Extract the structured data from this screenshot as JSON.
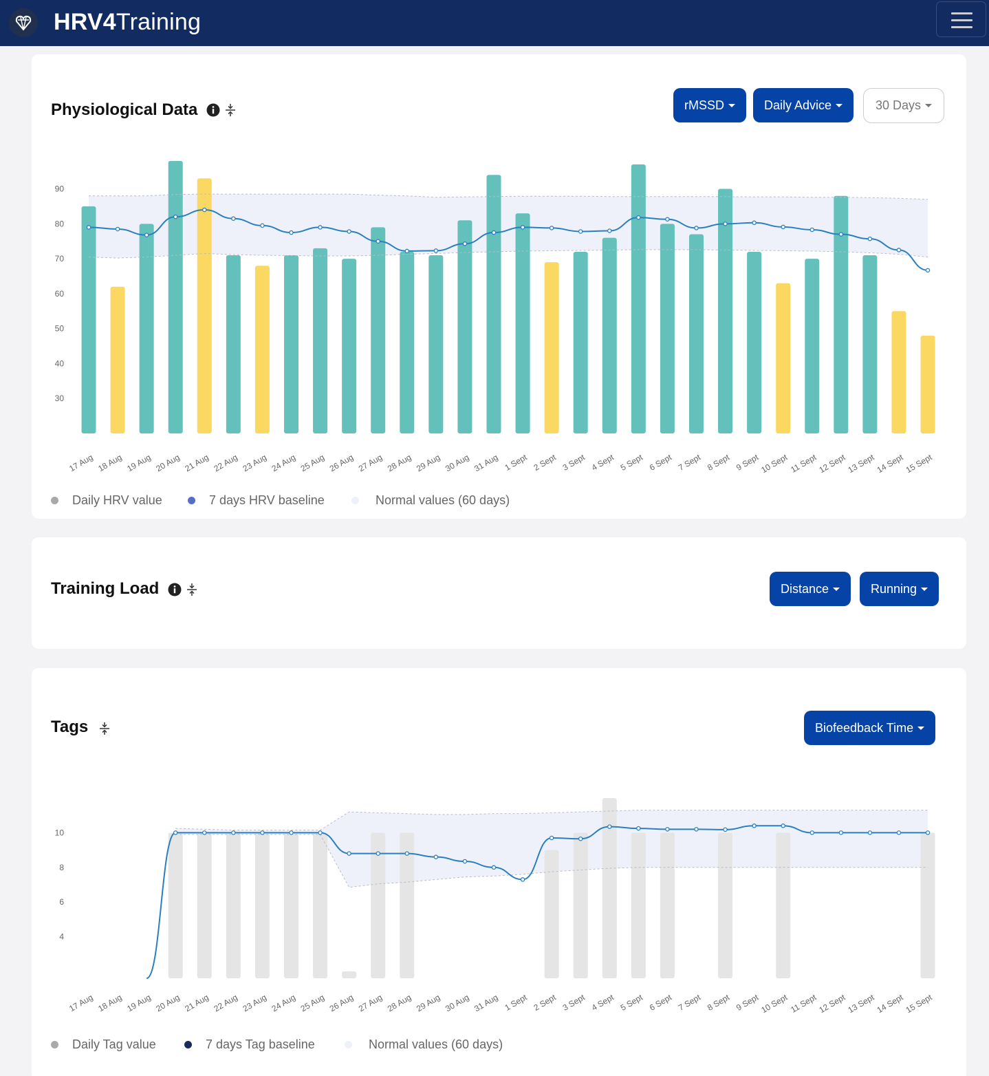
{
  "app": {
    "brand_bold": "HRV4",
    "brand_light": "Training"
  },
  "colors": {
    "navbar": "#122c62",
    "primary_button": "#0544a6",
    "hrv_bar_normal": "#63c0bb",
    "hrv_bar_low": "#fbd862",
    "baseline_line": "#2a7fbf",
    "band_fill": "#e8ecf7",
    "tag_bar": "#e5e5e5"
  },
  "physiological": {
    "title": "Physiological Data",
    "buttons": {
      "metric": "rMSSD",
      "mode": "Daily Advice",
      "range": "30 Days"
    },
    "legend": {
      "daily": "Daily HRV value",
      "baseline": "7 days HRV baseline",
      "normal": "Normal values (60 days)"
    }
  },
  "training_load": {
    "title": "Training Load",
    "buttons": {
      "metric": "Distance",
      "sport": "Running"
    }
  },
  "tags": {
    "title": "Tags",
    "buttons": {
      "tag": "Biofeedback Time"
    },
    "legend": {
      "daily": "Daily Tag value",
      "baseline": "7 days Tag baseline",
      "normal": "Normal values (60 days)"
    }
  },
  "chart_data": [
    {
      "type": "bar",
      "id": "hrv",
      "categories": [
        "17 Aug",
        "18 Aug",
        "19 Aug",
        "20 Aug",
        "21 Aug",
        "22 Aug",
        "23 Aug",
        "24 Aug",
        "25 Aug",
        "26 Aug",
        "27 Aug",
        "28 Aug",
        "29 Aug",
        "30 Aug",
        "31 Aug",
        "1 Sept",
        "2 Sept",
        "3 Sept",
        "4 Sept",
        "5 Sept",
        "6 Sept",
        "7 Sept",
        "8 Sept",
        "9 Sept",
        "10 Sept",
        "11 Sept",
        "12 Sept",
        "13 Sept",
        "14 Sept",
        "15 Sept"
      ],
      "yticks": [
        30,
        40,
        50,
        60,
        70,
        80,
        90
      ],
      "ylim": [
        20,
        97
      ],
      "series": [
        {
          "name": "Daily HRV value",
          "type": "bar",
          "values": [
            85,
            62,
            80,
            98,
            93,
            71,
            68,
            71,
            73,
            70,
            79,
            72,
            71,
            81,
            94,
            83,
            69,
            72,
            76,
            97,
            80,
            77,
            90,
            72,
            63,
            70,
            88,
            71,
            55,
            48
          ],
          "status": [
            "normal",
            "low",
            "normal",
            "normal",
            "low",
            "normal",
            "low",
            "normal",
            "normal",
            "normal",
            "normal",
            "normal",
            "normal",
            "normal",
            "normal",
            "normal",
            "low",
            "normal",
            "normal",
            "normal",
            "normal",
            "normal",
            "normal",
            "normal",
            "low",
            "normal",
            "normal",
            "normal",
            "low",
            "low"
          ]
        },
        {
          "name": "7 days HRV baseline",
          "type": "line",
          "values": [
            79,
            78.5,
            76.8,
            82,
            84,
            81.5,
            79.5,
            77.5,
            79,
            77.8,
            75,
            72.2,
            72.3,
            74.3,
            77.5,
            79,
            78.8,
            77.8,
            78,
            81.8,
            81.3,
            78.8,
            80,
            80.3,
            79.1,
            78.3,
            77,
            75.7,
            72.5,
            66.7
          ]
        },
        {
          "name": "Normal values (60 days)",
          "type": "band",
          "upper": [
            88,
            88,
            88,
            88.4,
            88.5,
            88.5,
            88.5,
            88.5,
            88.5,
            88.5,
            88.2,
            88,
            87.6,
            87.7,
            87.8,
            87.9,
            87.9,
            87.9,
            87.8,
            87.8,
            87.8,
            87.8,
            87.8,
            87.7,
            87.7,
            87.6,
            87.6,
            87.5,
            87.3,
            87
          ],
          "lower": [
            70.5,
            70.2,
            70.5,
            71,
            71.5,
            71.2,
            71,
            70.9,
            70.8,
            70.8,
            71,
            71.3,
            71.5,
            71.8,
            72,
            72.2,
            72.3,
            72.4,
            72.5,
            72.6,
            72.6,
            72.6,
            72.5,
            72.4,
            72.3,
            72.2,
            72,
            71.7,
            71.3,
            70.5
          ]
        }
      ]
    },
    {
      "type": "bar",
      "id": "tags",
      "categories": [
        "17 Aug",
        "18 Aug",
        "19 Aug",
        "20 Aug",
        "21 Aug",
        "22 Aug",
        "23 Aug",
        "24 Aug",
        "25 Aug",
        "26 Aug",
        "27 Aug",
        "28 Aug",
        "29 Aug",
        "30 Aug",
        "31 Aug",
        "1 Sept",
        "2 Sept",
        "3 Sept",
        "4 Sept",
        "5 Sept",
        "6 Sept",
        "7 Sept",
        "8 Sept",
        "9 Sept",
        "10 Sept",
        "11 Sept",
        "12 Sept",
        "13 Sept",
        "14 Sept",
        "15 Sept"
      ],
      "yticks": [
        4,
        6,
        8,
        10
      ],
      "ylim": [
        1.6,
        12
      ],
      "series": [
        {
          "name": "Daily Tag value",
          "type": "bar",
          "values": [
            null,
            null,
            null,
            10,
            10,
            10,
            10,
            10,
            10,
            2,
            10,
            10,
            null,
            null,
            null,
            null,
            9,
            10,
            12,
            10,
            10,
            null,
            10,
            null,
            10,
            null,
            null,
            null,
            null,
            10
          ]
        },
        {
          "name": "7 days Tag baseline",
          "type": "line",
          "values": [
            null,
            null,
            1.6,
            10,
            10,
            10,
            10,
            10,
            10,
            8.8,
            8.8,
            8.8,
            8.6,
            8.35,
            8,
            7.3,
            9.7,
            9.65,
            10.35,
            10.25,
            10.2,
            10.2,
            10.18,
            10.4,
            10.4,
            10,
            10,
            10,
            10,
            10
          ]
        },
        {
          "name": "Normal values (60 days)",
          "type": "band",
          "upper": [
            null,
            null,
            null,
            10.25,
            10.2,
            10.15,
            10.15,
            10.15,
            10.15,
            11.2,
            11.15,
            11.1,
            11.05,
            11.05,
            11.1,
            11.1,
            11.15,
            11.2,
            11.25,
            11.3,
            11.3,
            11.3,
            11.3,
            11.3,
            11.3,
            11.3,
            11.3,
            11.3,
            11.3,
            11.3
          ],
          "lower": [
            null,
            null,
            null,
            9.9,
            9.9,
            9.9,
            9.9,
            9.9,
            9.9,
            6.85,
            7.05,
            7.15,
            7.3,
            7.45,
            7.5,
            7.6,
            7.75,
            7.85,
            7.95,
            8.0,
            8.0,
            8.0,
            8.0,
            8.0,
            8.0,
            8.0,
            8.0,
            8.0,
            8.0,
            8.0
          ]
        }
      ]
    }
  ]
}
